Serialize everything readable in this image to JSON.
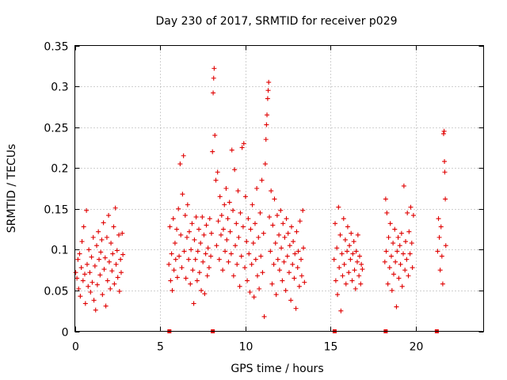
{
  "chart_data": {
    "type": "scatter",
    "title": "Day 230 of 2017, SRMTID for receiver p029",
    "xlabel": "GPS time / hours",
    "ylabel": "SRMTID / TECUs",
    "xlim": [
      0,
      24
    ],
    "ylim": [
      0,
      0.35
    ],
    "xticks": [
      0,
      5,
      10,
      15,
      20
    ],
    "yticks": [
      0,
      0.05,
      0.1,
      0.15,
      0.2,
      0.25,
      0.3,
      0.35
    ],
    "xtick_labels": [
      "0",
      "5",
      "10",
      "15",
      "20"
    ],
    "ytick_labels": [
      "0",
      "0.05",
      "0.1",
      "0.15",
      "0.2",
      "0.25",
      "0.3",
      "0.35"
    ],
    "grid": true,
    "marker": "+",
    "color": "#e00000",
    "series": [
      {
        "name": "SRMTID",
        "points": [
          [
            0.05,
            0.072
          ],
          [
            0.12,
            0.065
          ],
          [
            0.18,
            0.088
          ],
          [
            0.22,
            0.052
          ],
          [
            0.28,
            0.095
          ],
          [
            0.32,
            0.043
          ],
          [
            0.38,
            0.078
          ],
          [
            0.42,
            0.11
          ],
          [
            0.48,
            0.062
          ],
          [
            0.52,
            0.128
          ],
          [
            0.58,
            0.07
          ],
          [
            0.62,
            0.034
          ],
          [
            0.68,
            0.148
          ],
          [
            0.72,
            0.082
          ],
          [
            0.78,
            0.055
          ],
          [
            0.82,
            0.1
          ],
          [
            0.88,
            0.072
          ],
          [
            0.92,
            0.048
          ],
          [
            0.98,
            0.091
          ],
          [
            1.02,
            0.06
          ],
          [
            1.08,
            0.115
          ],
          [
            1.12,
            0.038
          ],
          [
            1.18,
            0.08
          ],
          [
            1.22,
            0.026
          ],
          [
            1.28,
            0.105
          ],
          [
            1.32,
            0.057
          ],
          [
            1.38,
            0.122
          ],
          [
            1.42,
            0.088
          ],
          [
            1.48,
            0.069
          ],
          [
            1.52,
            0.097
          ],
          [
            1.58,
            0.112
          ],
          [
            1.62,
            0.045
          ],
          [
            1.68,
            0.133
          ],
          [
            1.72,
            0.076
          ],
          [
            1.78,
            0.09
          ],
          [
            1.82,
            0.031
          ],
          [
            1.88,
            0.115
          ],
          [
            1.92,
            0.062
          ],
          [
            1.98,
            0.142
          ],
          [
            2.02,
            0.085
          ],
          [
            2.08,
            0.052
          ],
          [
            2.12,
            0.108
          ],
          [
            2.18,
            0.074
          ],
          [
            2.22,
            0.095
          ],
          [
            2.28,
            0.128
          ],
          [
            2.32,
            0.058
          ],
          [
            2.38,
            0.151
          ],
          [
            2.42,
            0.082
          ],
          [
            2.48,
            0.099
          ],
          [
            2.52,
            0.066
          ],
          [
            2.58,
            0.118
          ],
          [
            2.62,
            0.049
          ],
          [
            2.68,
            0.088
          ],
          [
            2.72,
            0.072
          ],
          [
            2.78,
            0.12
          ],
          [
            2.82,
            0.094
          ],
          [
            5.52,
            0.082
          ],
          [
            5.58,
            0.128
          ],
          [
            5.62,
            0.062
          ],
          [
            5.68,
            0.095
          ],
          [
            5.72,
            0.05
          ],
          [
            5.78,
            0.138
          ],
          [
            5.82,
            0.075
          ],
          [
            5.88,
            0.108
          ],
          [
            5.92,
            0.088
          ],
          [
            5.98,
            0.125
          ],
          [
            6.02,
            0.066
          ],
          [
            6.08,
            0.15
          ],
          [
            6.12,
            0.092
          ],
          [
            6.18,
            0.205
          ],
          [
            6.22,
            0.118
          ],
          [
            6.28,
            0.078
          ],
          [
            6.32,
            0.168
          ],
          [
            6.38,
            0.215
          ],
          [
            6.42,
            0.098
          ],
          [
            6.48,
            0.142
          ],
          [
            6.52,
            0.065
          ],
          [
            6.58,
            0.115
          ],
          [
            6.62,
            0.155
          ],
          [
            6.68,
            0.088
          ],
          [
            6.72,
            0.122
          ],
          [
            6.78,
            0.058
          ],
          [
            6.82,
            0.1
          ],
          [
            6.88,
            0.132
          ],
          [
            6.92,
            0.075
          ],
          [
            6.98,
            0.034
          ],
          [
            7.02,
            0.112
          ],
          [
            7.08,
            0.088
          ],
          [
            7.12,
            0.14
          ],
          [
            7.18,
            0.062
          ],
          [
            7.22,
            0.098
          ],
          [
            7.28,
            0.125
          ],
          [
            7.32,
            0.072
          ],
          [
            7.38,
            0.108
          ],
          [
            7.42,
            0.05
          ],
          [
            7.48,
            0.14
          ],
          [
            7.52,
            0.085
          ],
          [
            7.58,
            0.118
          ],
          [
            7.62,
            0.046
          ],
          [
            7.68,
            0.095
          ],
          [
            7.72,
            0.13
          ],
          [
            7.78,
            0.068
          ],
          [
            7.82,
            0.102
          ],
          [
            7.88,
            0.078
          ],
          [
            7.92,
            0.138
          ],
          [
            7.98,
            0.092
          ],
          [
            8.02,
            0.12
          ],
          [
            8.08,
            0.22
          ],
          [
            8.12,
            0.292
          ],
          [
            8.15,
            0.31
          ],
          [
            8.18,
            0.322
          ],
          [
            8.22,
            0.24
          ],
          [
            8.28,
            0.185
          ],
          [
            8.32,
            0.105
          ],
          [
            8.38,
            0.195
          ],
          [
            8.42,
            0.135
          ],
          [
            8.48,
            0.088
          ],
          [
            8.52,
            0.165
          ],
          [
            8.58,
            0.118
          ],
          [
            8.62,
            0.142
          ],
          [
            8.68,
            0.075
          ],
          [
            8.72,
            0.125
          ],
          [
            8.78,
            0.155
          ],
          [
            8.82,
            0.098
          ],
          [
            8.88,
            0.175
          ],
          [
            8.92,
            0.112
          ],
          [
            8.98,
            0.138
          ],
          [
            9.02,
            0.085
          ],
          [
            9.08,
            0.158
          ],
          [
            9.12,
            0.122
          ],
          [
            9.18,
            0.095
          ],
          [
            9.22,
            0.222
          ],
          [
            9.28,
            0.148
          ],
          [
            9.32,
            0.068
          ],
          [
            9.38,
            0.198
          ],
          [
            9.42,
            0.105
          ],
          [
            9.48,
            0.132
          ],
          [
            9.52,
            0.082
          ],
          [
            9.58,
            0.172
          ],
          [
            9.62,
            0.115
          ],
          [
            9.68,
            0.055
          ],
          [
            9.72,
            0.145
          ],
          [
            9.78,
            0.092
          ],
          [
            9.82,
            0.225
          ],
          [
            9.88,
            0.128
          ],
          [
            9.92,
            0.23
          ],
          [
            9.98,
            0.078
          ],
          [
            10.02,
            0.165
          ],
          [
            10.08,
            0.11
          ],
          [
            10.12,
            0.062
          ],
          [
            10.18,
            0.138
          ],
          [
            10.22,
            0.095
          ],
          [
            10.28,
            0.048
          ],
          [
            10.32,
            0.125
          ],
          [
            10.38,
            0.082
          ],
          [
            10.42,
            0.155
          ],
          [
            10.48,
            0.108
          ],
          [
            10.52,
            0.042
          ],
          [
            10.58,
            0.132
          ],
          [
            10.62,
            0.088
          ],
          [
            10.68,
            0.175
          ],
          [
            10.72,
            0.068
          ],
          [
            10.78,
            0.115
          ],
          [
            10.82,
            0.052
          ],
          [
            10.88,
            0.145
          ],
          [
            10.92,
            0.092
          ],
          [
            10.98,
            0.185
          ],
          [
            11.02,
            0.072
          ],
          [
            11.08,
            0.12
          ],
          [
            11.12,
            0.018
          ],
          [
            11.18,
            0.205
          ],
          [
            11.22,
            0.235
          ],
          [
            11.25,
            0.253
          ],
          [
            11.28,
            0.265
          ],
          [
            11.32,
            0.285
          ],
          [
            11.35,
            0.295
          ],
          [
            11.38,
            0.305
          ],
          [
            11.42,
            0.14
          ],
          [
            11.48,
            0.098
          ],
          [
            11.52,
            0.172
          ],
          [
            11.58,
            0.058
          ],
          [
            11.62,
            0.13
          ],
          [
            11.68,
            0.082
          ],
          [
            11.72,
            0.162
          ],
          [
            11.78,
            0.108
          ],
          [
            11.82,
            0.045
          ],
          [
            11.88,
            0.142
          ],
          [
            11.92,
            0.088
          ],
          [
            11.98,
            0.118
          ],
          [
            12.02,
            0.075
          ],
          [
            12.08,
            0.148
          ],
          [
            12.12,
            0.102
          ],
          [
            12.18,
            0.062
          ],
          [
            12.22,
            0.132
          ],
          [
            12.28,
            0.085
          ],
          [
            12.32,
            0.115
          ],
          [
            12.38,
            0.05
          ],
          [
            12.42,
            0.138
          ],
          [
            12.48,
            0.092
          ],
          [
            12.52,
            0.12
          ],
          [
            12.58,
            0.072
          ],
          [
            12.62,
            0.105
          ],
          [
            12.68,
            0.038
          ],
          [
            12.72,
            0.128
          ],
          [
            12.78,
            0.082
          ],
          [
            12.82,
            0.11
          ],
          [
            12.88,
            0.065
          ],
          [
            12.92,
            0.095
          ],
          [
            12.98,
            0.028
          ],
          [
            13.02,
            0.122
          ],
          [
            13.08,
            0.078
          ],
          [
            13.12,
            0.098
          ],
          [
            13.18,
            0.055
          ],
          [
            13.22,
            0.135
          ],
          [
            13.28,
            0.088
          ],
          [
            13.32,
            0.068
          ],
          [
            13.38,
            0.148
          ],
          [
            13.42,
            0.102
          ],
          [
            13.48,
            0.06
          ],
          [
            15.22,
            0.088
          ],
          [
            15.28,
            0.132
          ],
          [
            15.32,
            0.062
          ],
          [
            15.38,
            0.102
          ],
          [
            15.42,
            0.045
          ],
          [
            15.48,
            0.152
          ],
          [
            15.52,
            0.078
          ],
          [
            15.58,
            0.118
          ],
          [
            15.62,
            0.025
          ],
          [
            15.68,
            0.095
          ],
          [
            15.72,
            0.068
          ],
          [
            15.78,
            0.138
          ],
          [
            15.82,
            0.082
          ],
          [
            15.88,
            0.112
          ],
          [
            15.92,
            0.058
          ],
          [
            15.98,
            0.098
          ],
          [
            16.02,
            0.128
          ],
          [
            16.08,
            0.072
          ],
          [
            16.12,
            0.105
          ],
          [
            16.18,
            0.088
          ],
          [
            16.22,
            0.12
          ],
          [
            16.28,
            0.062
          ],
          [
            16.32,
            0.095
          ],
          [
            16.38,
            0.11
          ],
          [
            16.42,
            0.075
          ],
          [
            16.48,
            0.052
          ],
          [
            16.52,
            0.098
          ],
          [
            16.58,
            0.085
          ],
          [
            16.62,
            0.118
          ],
          [
            16.68,
            0.068
          ],
          [
            16.72,
            0.092
          ],
          [
            16.78,
            0.058
          ],
          [
            16.82,
            0.082
          ],
          [
            16.88,
            0.076
          ],
          [
            18.2,
            0.085
          ],
          [
            18.25,
            0.162
          ],
          [
            18.28,
            0.098
          ],
          [
            18.32,
            0.145
          ],
          [
            18.38,
            0.058
          ],
          [
            18.42,
            0.115
          ],
          [
            18.48,
            0.078
          ],
          [
            18.52,
            0.132
          ],
          [
            18.58,
            0.092
          ],
          [
            18.62,
            0.05
          ],
          [
            18.68,
            0.108
          ],
          [
            18.72,
            0.07
          ],
          [
            18.78,
            0.125
          ],
          [
            18.82,
            0.085
          ],
          [
            18.88,
            0.03
          ],
          [
            18.92,
            0.098
          ],
          [
            18.98,
            0.115
          ],
          [
            19.02,
            0.065
          ],
          [
            19.08,
            0.105
          ],
          [
            19.12,
            0.082
          ],
          [
            19.18,
            0.12
          ],
          [
            19.22,
            0.055
          ],
          [
            19.28,
            0.095
          ],
          [
            19.32,
            0.178
          ],
          [
            19.38,
            0.075
          ],
          [
            19.42,
            0.11
          ],
          [
            19.48,
            0.088
          ],
          [
            19.52,
            0.145
          ],
          [
            19.58,
            0.068
          ],
          [
            19.62,
            0.122
          ],
          [
            19.68,
            0.095
          ],
          [
            19.72,
            0.152
          ],
          [
            19.78,
            0.108
          ],
          [
            19.82,
            0.078
          ],
          [
            19.88,
            0.142
          ],
          [
            21.3,
            0.098
          ],
          [
            21.35,
            0.138
          ],
          [
            21.4,
            0.115
          ],
          [
            21.45,
            0.075
          ],
          [
            21.5,
            0.128
          ],
          [
            21.55,
            0.092
          ],
          [
            21.6,
            0.058
          ],
          [
            21.65,
            0.242
          ],
          [
            21.68,
            0.245
          ],
          [
            21.7,
            0.208
          ],
          [
            21.72,
            0.195
          ],
          [
            21.75,
            0.162
          ],
          [
            21.78,
            0.105
          ]
        ]
      }
    ],
    "zero_markers": [
      5.55,
      8.1,
      15.25,
      18.25,
      21.25
    ]
  }
}
